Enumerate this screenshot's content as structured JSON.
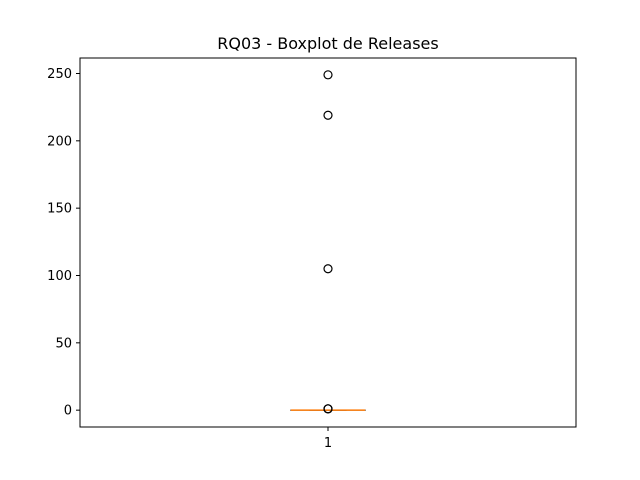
{
  "chart_data": {
    "type": "boxplot",
    "title": "RQ03 - Boxplot de Releases",
    "xlabel": "",
    "ylabel": "",
    "categories": [
      "1"
    ],
    "ylim": [
      -12.5,
      261.5
    ],
    "yticks": [
      0,
      50,
      100,
      150,
      200,
      250
    ],
    "grid": false,
    "boxes": [
      {
        "category": "1",
        "whisker_low": 0,
        "q1": 0,
        "median": 0,
        "q3": 0,
        "whisker_high": 0,
        "outliers": [
          1,
          1,
          1,
          105,
          219,
          249
        ]
      }
    ],
    "colors": {
      "median": "#ff7f0e",
      "box": "#000000",
      "outlier_edge": "#000000",
      "axes": "#000000"
    }
  }
}
